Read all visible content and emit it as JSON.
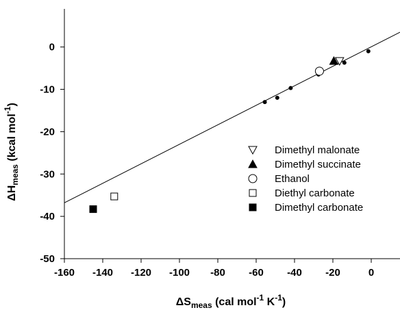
{
  "chart_data": {
    "type": "scatter",
    "title": "",
    "xlabel": {
      "prefix": "ΔS",
      "sub": "meas",
      "unit_a": " (cal mol",
      "sup_a": "-1",
      "unit_b": " K",
      "sup_b": "-1",
      "unit_c": ")"
    },
    "ylabel": {
      "prefix": "ΔH",
      "sub": "meas",
      "unit_a": " (kcal mol",
      "sup_a": "-1",
      "unit_c": ")"
    },
    "xlim": [
      -160,
      15
    ],
    "ylim": [
      -50,
      9
    ],
    "xticks": [
      -160,
      -140,
      -120,
      -100,
      -80,
      -60,
      -40,
      -20,
      0
    ],
    "yticks": [
      -50,
      -40,
      -30,
      -20,
      -10,
      0
    ],
    "grid": false,
    "legend_position": "right",
    "fit_line": {
      "x": [
        -160,
        15
      ],
      "y": [
        -36.8,
        3.5
      ]
    },
    "series": [
      {
        "name": "",
        "marker": "small-dot",
        "points": [
          [
            -55.5,
            -13.0
          ],
          [
            -49.0,
            -12.0
          ],
          [
            -42.0,
            -9.7
          ],
          [
            -27.5,
            -6.5
          ],
          [
            -14.0,
            -3.7
          ],
          [
            -1.5,
            -1.0
          ]
        ]
      },
      {
        "name": "Dimethyl malonate",
        "marker": "triangle-down-open",
        "points": [
          [
            -16.5,
            -3.3
          ]
        ]
      },
      {
        "name": "Dimethyl succinate",
        "marker": "triangle-up-filled",
        "points": [
          [
            -19.5,
            -3.3
          ]
        ]
      },
      {
        "name": "Ethanol",
        "marker": "circle-open",
        "points": [
          [
            -27.0,
            -5.7
          ]
        ]
      },
      {
        "name": "Diethyl carbonate",
        "marker": "square-open",
        "points": [
          [
            -134.0,
            -35.3
          ]
        ]
      },
      {
        "name": "Dimethyl carbonate",
        "marker": "square-filled",
        "points": [
          [
            -145.0,
            -38.3
          ]
        ]
      }
    ]
  }
}
